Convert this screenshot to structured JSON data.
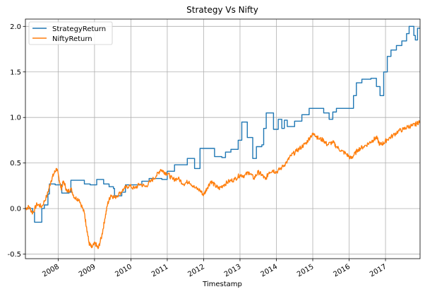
{
  "chart_data": {
    "type": "line",
    "title": "Strategy Vs Nifty",
    "xlabel": "Timestamp",
    "ylabel": "",
    "xlim": [
      2007.1,
      2017.95
    ],
    "ylim": [
      -0.55,
      2.08
    ],
    "grid": true,
    "legend_position": "top-left",
    "y_ticks": [
      -0.5,
      0.0,
      0.5,
      1.0,
      1.5,
      2.0
    ],
    "y_tick_labels": [
      "-0.5",
      "0.0",
      "0.5",
      "1.0",
      "1.5",
      "2.0"
    ],
    "x_ticks": [
      2008,
      2009,
      2010,
      2011,
      2012,
      2013,
      2014,
      2015,
      2016,
      2017
    ],
    "x_tick_labels": [
      "2008",
      "2009",
      "2010",
      "2011",
      "2012",
      "2013",
      "2014",
      "2015",
      "2016",
      "2017"
    ],
    "series": [
      {
        "name": "StrategyReturn",
        "color": "#1f77b4",
        "style": "step",
        "points": [
          [
            2007.1,
            0.0
          ],
          [
            2007.3,
            -0.04
          ],
          [
            2007.35,
            -0.15
          ],
          [
            2007.5,
            -0.15
          ],
          [
            2007.55,
            0.0
          ],
          [
            2007.62,
            0.04
          ],
          [
            2007.72,
            0.16
          ],
          [
            2007.76,
            0.27
          ],
          [
            2007.92,
            0.26
          ],
          [
            2008.05,
            0.26
          ],
          [
            2008.1,
            0.17
          ],
          [
            2008.3,
            0.18
          ],
          [
            2008.35,
            0.31
          ],
          [
            2008.68,
            0.31
          ],
          [
            2008.72,
            0.27
          ],
          [
            2008.88,
            0.26
          ],
          [
            2009.02,
            0.26
          ],
          [
            2009.06,
            0.32
          ],
          [
            2009.2,
            0.32
          ],
          [
            2009.25,
            0.27
          ],
          [
            2009.4,
            0.24
          ],
          [
            2009.52,
            0.22
          ],
          [
            2009.55,
            0.14
          ],
          [
            2009.7,
            0.14
          ],
          [
            2009.75,
            0.18
          ],
          [
            2009.85,
            0.26
          ],
          [
            2010.2,
            0.26
          ],
          [
            2010.3,
            0.3
          ],
          [
            2010.5,
            0.33
          ],
          [
            2010.6,
            0.33
          ],
          [
            2010.85,
            0.32
          ],
          [
            2011.0,
            0.41
          ],
          [
            2011.2,
            0.48
          ],
          [
            2011.42,
            0.48
          ],
          [
            2011.55,
            0.55
          ],
          [
            2011.75,
            0.44
          ],
          [
            2011.9,
            0.66
          ],
          [
            2012.2,
            0.66
          ],
          [
            2012.3,
            0.57
          ],
          [
            2012.5,
            0.56
          ],
          [
            2012.6,
            0.62
          ],
          [
            2012.75,
            0.65
          ],
          [
            2012.88,
            0.65
          ],
          [
            2012.95,
            0.75
          ],
          [
            2013.05,
            0.95
          ],
          [
            2013.2,
            0.78
          ],
          [
            2013.35,
            0.55
          ],
          [
            2013.45,
            0.68
          ],
          [
            2013.6,
            0.7
          ],
          [
            2013.65,
            0.88
          ],
          [
            2013.72,
            1.05
          ],
          [
            2013.85,
            1.05
          ],
          [
            2013.92,
            0.87
          ],
          [
            2014.05,
            0.98
          ],
          [
            2014.15,
            0.88
          ],
          [
            2014.22,
            0.97
          ],
          [
            2014.3,
            0.9
          ],
          [
            2014.5,
            0.96
          ],
          [
            2014.7,
            1.03
          ],
          [
            2014.8,
            1.03
          ],
          [
            2014.9,
            1.1
          ],
          [
            2015.15,
            1.1
          ],
          [
            2015.3,
            1.05
          ],
          [
            2015.45,
            0.98
          ],
          [
            2015.55,
            1.06
          ],
          [
            2015.65,
            1.1
          ],
          [
            2016.0,
            1.1
          ],
          [
            2016.12,
            1.24
          ],
          [
            2016.2,
            1.38
          ],
          [
            2016.35,
            1.42
          ],
          [
            2016.5,
            1.42
          ],
          [
            2016.6,
            1.43
          ],
          [
            2016.75,
            1.34
          ],
          [
            2016.85,
            1.24
          ],
          [
            2016.95,
            1.5
          ],
          [
            2017.05,
            1.67
          ],
          [
            2017.15,
            1.74
          ],
          [
            2017.3,
            1.79
          ],
          [
            2017.45,
            1.84
          ],
          [
            2017.58,
            1.92
          ],
          [
            2017.65,
            2.0
          ],
          [
            2017.78,
            1.9
          ],
          [
            2017.82,
            1.85
          ],
          [
            2017.88,
            1.98
          ],
          [
            2017.95,
            1.98
          ]
        ]
      },
      {
        "name": "NiftyReturn",
        "color": "#ff7f0e",
        "style": "line",
        "points": [
          [
            2007.1,
            0.0
          ],
          [
            2007.2,
            0.02
          ],
          [
            2007.3,
            -0.05
          ],
          [
            2007.42,
            0.05
          ],
          [
            2007.55,
            0.02
          ],
          [
            2007.7,
            0.15
          ],
          [
            2007.8,
            0.3
          ],
          [
            2007.88,
            0.38
          ],
          [
            2007.96,
            0.44
          ],
          [
            2008.02,
            0.34
          ],
          [
            2008.08,
            0.22
          ],
          [
            2008.15,
            0.3
          ],
          [
            2008.25,
            0.18
          ],
          [
            2008.35,
            0.22
          ],
          [
            2008.45,
            0.12
          ],
          [
            2008.58,
            0.1
          ],
          [
            2008.72,
            -0.05
          ],
          [
            2008.78,
            -0.2
          ],
          [
            2008.85,
            -0.38
          ],
          [
            2008.92,
            -0.43
          ],
          [
            2009.02,
            -0.38
          ],
          [
            2009.1,
            -0.44
          ],
          [
            2009.2,
            -0.3
          ],
          [
            2009.28,
            -0.12
          ],
          [
            2009.36,
            0.05
          ],
          [
            2009.45,
            0.15
          ],
          [
            2009.55,
            0.12
          ],
          [
            2009.7,
            0.17
          ],
          [
            2009.82,
            0.22
          ],
          [
            2009.95,
            0.25
          ],
          [
            2010.1,
            0.22
          ],
          [
            2010.25,
            0.27
          ],
          [
            2010.4,
            0.24
          ],
          [
            2010.55,
            0.3
          ],
          [
            2010.7,
            0.36
          ],
          [
            2010.82,
            0.43
          ],
          [
            2010.92,
            0.4
          ],
          [
            2011.02,
            0.38
          ],
          [
            2011.15,
            0.32
          ],
          [
            2011.3,
            0.33
          ],
          [
            2011.45,
            0.27
          ],
          [
            2011.6,
            0.3
          ],
          [
            2011.75,
            0.23
          ],
          [
            2011.9,
            0.2
          ],
          [
            2012.0,
            0.15
          ],
          [
            2012.1,
            0.23
          ],
          [
            2012.2,
            0.3
          ],
          [
            2012.32,
            0.25
          ],
          [
            2012.42,
            0.22
          ],
          [
            2012.55,
            0.26
          ],
          [
            2012.7,
            0.3
          ],
          [
            2012.85,
            0.32
          ],
          [
            2013.0,
            0.37
          ],
          [
            2013.12,
            0.36
          ],
          [
            2013.25,
            0.4
          ],
          [
            2013.38,
            0.33
          ],
          [
            2013.5,
            0.4
          ],
          [
            2013.6,
            0.37
          ],
          [
            2013.7,
            0.32
          ],
          [
            2013.8,
            0.4
          ],
          [
            2013.9,
            0.42
          ],
          [
            2014.0,
            0.4
          ],
          [
            2014.15,
            0.45
          ],
          [
            2014.3,
            0.52
          ],
          [
            2014.4,
            0.58
          ],
          [
            2014.55,
            0.63
          ],
          [
            2014.7,
            0.68
          ],
          [
            2014.82,
            0.72
          ],
          [
            2014.95,
            0.8
          ],
          [
            2015.05,
            0.82
          ],
          [
            2015.15,
            0.77
          ],
          [
            2015.3,
            0.75
          ],
          [
            2015.4,
            0.7
          ],
          [
            2015.55,
            0.73
          ],
          [
            2015.65,
            0.68
          ],
          [
            2015.8,
            0.63
          ],
          [
            2015.92,
            0.6
          ],
          [
            2016.05,
            0.55
          ],
          [
            2016.12,
            0.58
          ],
          [
            2016.25,
            0.65
          ],
          [
            2016.4,
            0.68
          ],
          [
            2016.55,
            0.72
          ],
          [
            2016.65,
            0.75
          ],
          [
            2016.75,
            0.78
          ],
          [
            2016.85,
            0.7
          ],
          [
            2016.95,
            0.72
          ],
          [
            2017.05,
            0.76
          ],
          [
            2017.2,
            0.8
          ],
          [
            2017.35,
            0.85
          ],
          [
            2017.5,
            0.87
          ],
          [
            2017.62,
            0.9
          ],
          [
            2017.75,
            0.91
          ],
          [
            2017.85,
            0.93
          ],
          [
            2017.95,
            0.96
          ]
        ]
      }
    ]
  }
}
